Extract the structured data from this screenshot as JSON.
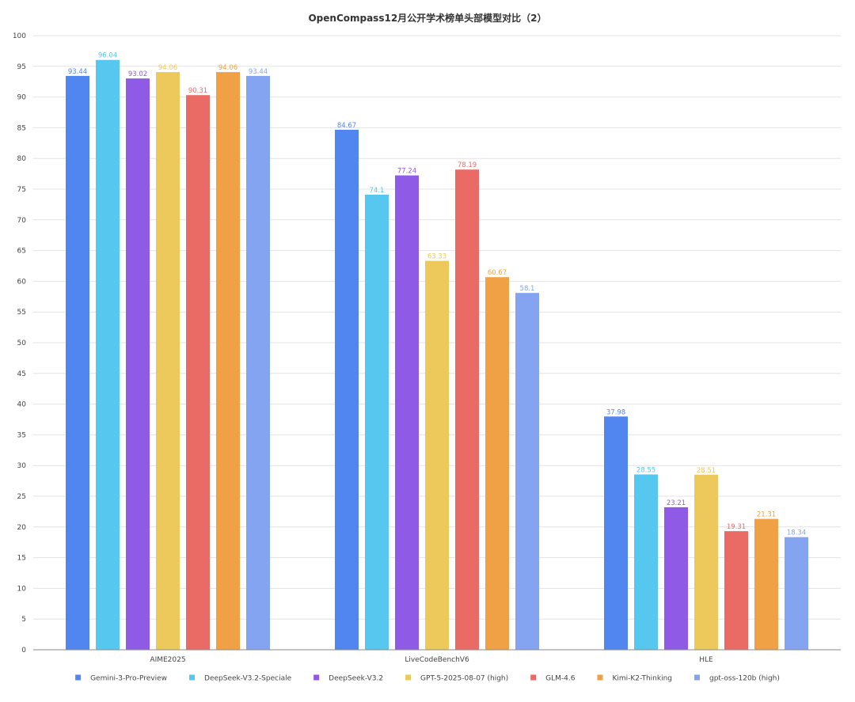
{
  "chart_data": {
    "type": "bar",
    "title": "OpenCompass12月公开学术榜单头部模型对比（2）",
    "xlabel": "",
    "ylabel": "",
    "ylim": [
      0,
      100
    ],
    "ytick_step": 5,
    "grid": true,
    "legend_position": "bottom",
    "categories": [
      "AIME2025",
      "LiveCodeBenchV6",
      "HLE"
    ],
    "series": [
      {
        "name": "Gemini-3-Pro-Preview",
        "color": "#5186f1",
        "values": [
          93.44,
          84.67,
          37.98
        ]
      },
      {
        "name": "DeepSeek-V3.2-Speciale",
        "color": "#56c8ef",
        "values": [
          96.04,
          74.1,
          28.55
        ]
      },
      {
        "name": "DeepSeek-V3.2",
        "color": "#8f5ae6",
        "values": [
          93.02,
          77.24,
          23.21
        ]
      },
      {
        "name": "GPT-5-2025-08-07 (high)",
        "color": "#ecc95a",
        "values": [
          94.06,
          63.33,
          28.51
        ]
      },
      {
        "name": "GLM-4.6",
        "color": "#ea6b66",
        "values": [
          90.31,
          78.19,
          19.31
        ]
      },
      {
        "name": "Kimi-K2-Thinking",
        "color": "#f1a145",
        "values": [
          94.06,
          60.67,
          21.31
        ]
      },
      {
        "name": "gpt-oss-120b (high)",
        "color": "#84a4f1",
        "values": [
          93.44,
          58.1,
          18.34
        ]
      }
    ]
  }
}
